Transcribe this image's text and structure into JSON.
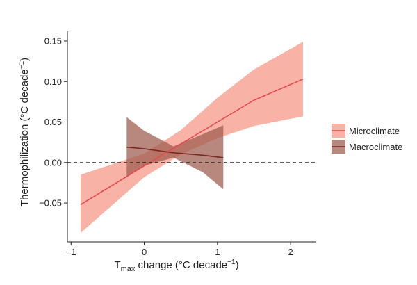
{
  "chart_data": {
    "type": "line",
    "title": "",
    "xlabel": {
      "main": "T",
      "sub": "max",
      "rest": " change (°C  decade",
      "sup": "−1",
      "close": ")"
    },
    "ylabel": "Thermophilization (°C decade",
    "ylabel_sup": "−1",
    "ylabel_close": ")",
    "xlim": [
      -1.05,
      2.35
    ],
    "ylim": [
      -0.098,
      0.162
    ],
    "x_ticks": [
      -1,
      0,
      1,
      2
    ],
    "x_tick_labels": [
      "−1",
      "0",
      "1",
      "2"
    ],
    "y_ticks": [
      -0.05,
      0.0,
      0.05,
      0.1,
      0.15
    ],
    "y_tick_labels": [
      "−0.05",
      "0.00",
      "0.05",
      "0.10",
      "0.15"
    ],
    "grid": false,
    "reference_line": {
      "y": 0,
      "style": "dashed",
      "color": "#222222"
    },
    "legend_position": "right",
    "series": [
      {
        "name": "Microclimate",
        "line_color": "#e8484c",
        "band_color": "#f7a090",
        "x": [
          -0.87,
          0.0,
          0.5,
          1.0,
          1.5,
          2.17
        ],
        "y": [
          -0.052,
          -0.004,
          0.023,
          0.05,
          0.077,
          0.103
        ],
        "lower": [
          -0.087,
          -0.018,
          0.01,
          0.03,
          0.045,
          0.057
        ],
        "upper": [
          -0.015,
          0.011,
          0.04,
          0.08,
          0.115,
          0.149
        ]
      },
      {
        "name": "Macroclimate",
        "line_color": "#7a2820",
        "band_color": "#9c5a4c",
        "x": [
          -0.24,
          0.0,
          0.4,
          0.8,
          1.08
        ],
        "y": [
          0.019,
          0.017,
          0.012,
          0.009,
          0.006
        ],
        "lower": [
          -0.017,
          -0.004,
          0.006,
          -0.012,
          -0.033
        ],
        "upper": [
          0.056,
          0.039,
          0.02,
          0.035,
          0.046
        ]
      }
    ]
  }
}
